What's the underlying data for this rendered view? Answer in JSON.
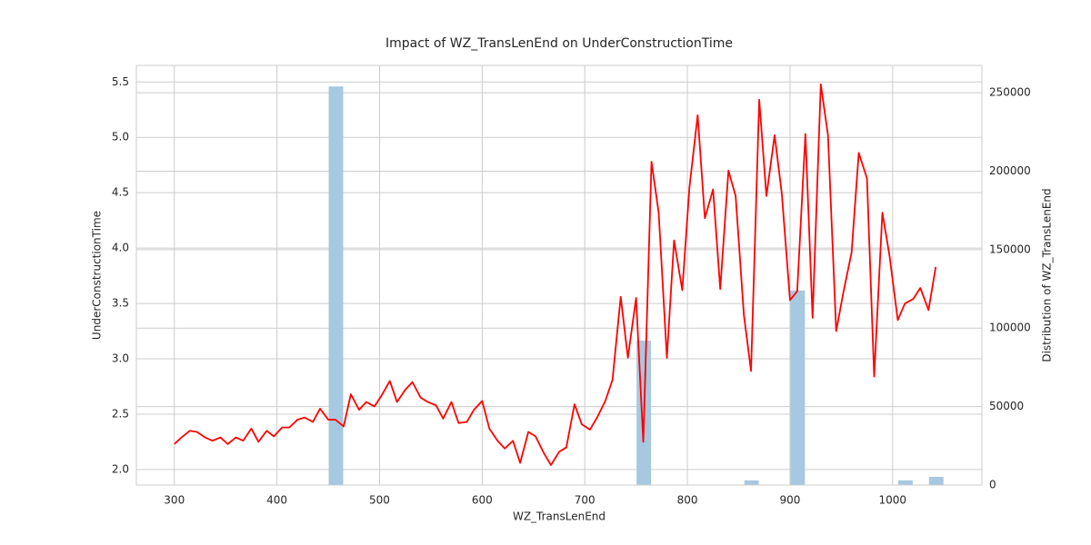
{
  "chart_data": {
    "type": "line",
    "title": "Impact of WZ_TransLenEnd on UnderConstructionTime",
    "x_label": "WZ_TransLenEnd",
    "y_label": "UnderConstructionTime",
    "y2_label": "Distribution of WZ_TransLenEnd",
    "color": "#ff0000",
    "grid": true,
    "xlim": [
      263,
      1087
    ],
    "xticks": [
      300,
      400,
      500,
      600,
      700,
      800,
      900,
      1000
    ],
    "ylim": [
      1.86,
      5.65
    ],
    "yticks": [
      {
        "value": 2,
        "label": "2.0"
      },
      2.5,
      {
        "value": 3,
        "label": "3.0"
      },
      3.5,
      {
        "value": 4,
        "label": "4.0"
      },
      4.5,
      {
        "value": 5,
        "label": "5.0"
      },
      5.5
    ],
    "y2lim": [
      0,
      267400
    ],
    "y2ticks": [
      0,
      50000,
      100000,
      150000,
      200000,
      250000
    ],
    "x": [
      300,
      307,
      315,
      322,
      330,
      337,
      345,
      352,
      360,
      367,
      375,
      382,
      390,
      397,
      405,
      412,
      420,
      427,
      435,
      442,
      450,
      457,
      465,
      472,
      480,
      487,
      495,
      502,
      510,
      517,
      525,
      532,
      540,
      547,
      555,
      562,
      570,
      577,
      585,
      592,
      600,
      607,
      615,
      622,
      630,
      637,
      645,
      652,
      660,
      667,
      675,
      682,
      690,
      697,
      705,
      712,
      720,
      727,
      735,
      742,
      750,
      757,
      765,
      772,
      780,
      787,
      795,
      802,
      810,
      817,
      825,
      832,
      840,
      847,
      855,
      862,
      870,
      877,
      885,
      892,
      900,
      907,
      915,
      922,
      930,
      937,
      945,
      952,
      960,
      967,
      975,
      982,
      990,
      997,
      1005,
      1012,
      1020,
      1027,
      1035,
      1042
    ],
    "values": [
      2.23,
      2.29,
      2.35,
      2.34,
      2.29,
      2.26,
      2.29,
      2.23,
      2.29,
      2.26,
      2.37,
      2.25,
      2.35,
      2.3,
      2.38,
      2.38,
      2.45,
      2.47,
      2.43,
      2.55,
      2.45,
      2.45,
      2.39,
      2.68,
      2.54,
      2.61,
      2.57,
      2.67,
      2.8,
      2.61,
      2.72,
      2.79,
      2.65,
      2.61,
      2.58,
      2.46,
      2.61,
      2.42,
      2.43,
      2.54,
      2.62,
      2.37,
      2.26,
      2.19,
      2.26,
      2.06,
      2.34,
      2.3,
      2.15,
      2.04,
      2.16,
      2.2,
      2.59,
      2.41,
      2.36,
      2.47,
      2.62,
      2.81,
      3.56,
      3.01,
      3.55,
      2.25,
      4.78,
      4.32,
      3.01,
      4.07,
      3.62,
      4.55,
      5.2,
      4.27,
      4.53,
      3.63,
      4.7,
      4.47,
      3.4,
      2.89,
      5.34,
      4.47,
      5.02,
      4.49,
      3.53,
      3.61,
      5.03,
      3.37,
      5.48,
      5.02,
      3.25,
      3.6,
      3.96,
      4.86,
      4.63,
      2.84,
      4.32,
      3.93,
      3.35,
      3.5,
      3.54,
      3.64,
      3.44,
      3.83
    ],
    "histogram": {
      "type": "histogram",
      "axis": "y2",
      "color": "#a6c8e0",
      "bins": [
        450,
        465,
        480,
        495,
        510,
        525,
        540,
        555,
        570,
        585,
        600,
        615,
        630,
        645,
        660,
        675,
        690,
        705,
        720,
        735,
        750,
        765,
        780,
        795,
        810,
        825,
        840,
        855,
        870,
        885,
        900,
        915,
        930,
        945,
        960,
        975,
        990,
        1005,
        1020,
        1035,
        1050
      ],
      "counts": [
        254000,
        0,
        0,
        0,
        0,
        0,
        0,
        0,
        0,
        0,
        0,
        0,
        0,
        0,
        0,
        0,
        0,
        0,
        0,
        0,
        92000,
        0,
        0,
        0,
        0,
        0,
        0,
        3000,
        0,
        0,
        124000,
        0,
        0,
        0,
        0,
        0,
        0,
        3000,
        0,
        5200
      ]
    }
  }
}
